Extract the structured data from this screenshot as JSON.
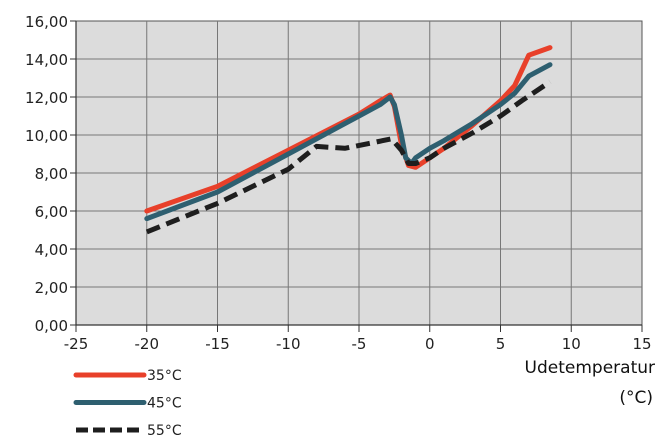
{
  "chart_data": {
    "type": "line",
    "title": "",
    "xlabel_line1": "Udetemperatur",
    "xlabel_line2": "(°C)",
    "ylabel": "",
    "xlim": [
      -25,
      15
    ],
    "ylim": [
      0,
      16
    ],
    "x_ticks": [
      "-25",
      "-20",
      "-15",
      "-10",
      "-5",
      "0",
      "5",
      "10",
      "15"
    ],
    "x_tick_values": [
      -25,
      -20,
      -15,
      -10,
      -5,
      0,
      5,
      10,
      15
    ],
    "y_ticks": [
      "0,00",
      "2,00",
      "4,00",
      "6,00",
      "8,00",
      "10,00",
      "12,00",
      "14,00",
      "16,00"
    ],
    "y_tick_values": [
      0,
      2,
      4,
      6,
      8,
      10,
      12,
      14,
      16
    ],
    "grid": true,
    "plot_background": "#dcdcdc",
    "legend_position": "bottom-left",
    "series": [
      {
        "name": "35°C",
        "color": "#e8402a",
        "style": "solid",
        "points": [
          [
            -20,
            6.0
          ],
          [
            -15,
            7.3
          ],
          [
            -10,
            9.2
          ],
          [
            -5,
            11.1
          ],
          [
            -3.5,
            11.8
          ],
          [
            -2.8,
            12.1
          ],
          [
            -2.5,
            11.5
          ],
          [
            -2.0,
            9.5
          ],
          [
            -1.5,
            8.4
          ],
          [
            -1.0,
            8.3
          ],
          [
            0,
            8.8
          ],
          [
            1,
            9.3
          ],
          [
            3,
            10.5
          ],
          [
            5,
            11.8
          ],
          [
            6,
            12.6
          ],
          [
            7,
            14.2
          ],
          [
            8.5,
            14.6
          ]
        ]
      },
      {
        "name": "45°C",
        "color": "#2e5f70",
        "style": "solid",
        "points": [
          [
            -20,
            5.6
          ],
          [
            -15,
            7.0
          ],
          [
            -10,
            9.0
          ],
          [
            -7.5,
            10.0
          ],
          [
            -5,
            11.0
          ],
          [
            -3.5,
            11.6
          ],
          [
            -2.8,
            12.0
          ],
          [
            -2.5,
            11.6
          ],
          [
            -2.0,
            10.0
          ],
          [
            -1.7,
            8.8
          ],
          [
            -1.3,
            8.5
          ],
          [
            -1.0,
            8.8
          ],
          [
            0,
            9.3
          ],
          [
            1,
            9.7
          ],
          [
            3,
            10.6
          ],
          [
            5,
            11.6
          ],
          [
            6,
            12.2
          ],
          [
            7,
            13.1
          ],
          [
            8.5,
            13.7
          ]
        ]
      },
      {
        "name": "55°C",
        "color": "#1e1e1e",
        "style": "dashed",
        "points": [
          [
            -20,
            4.9
          ],
          [
            -15,
            6.4
          ],
          [
            -10,
            8.2
          ],
          [
            -8,
            9.4
          ],
          [
            -6,
            9.3
          ],
          [
            -4,
            9.6
          ],
          [
            -2.7,
            9.8
          ],
          [
            -2.0,
            9.2
          ],
          [
            -1.5,
            8.5
          ],
          [
            -1.0,
            8.5
          ],
          [
            0,
            8.8
          ],
          [
            1,
            9.3
          ],
          [
            3,
            10.1
          ],
          [
            5,
            11.0
          ],
          [
            6.5,
            11.8
          ],
          [
            8.5,
            12.8
          ]
        ]
      }
    ]
  }
}
